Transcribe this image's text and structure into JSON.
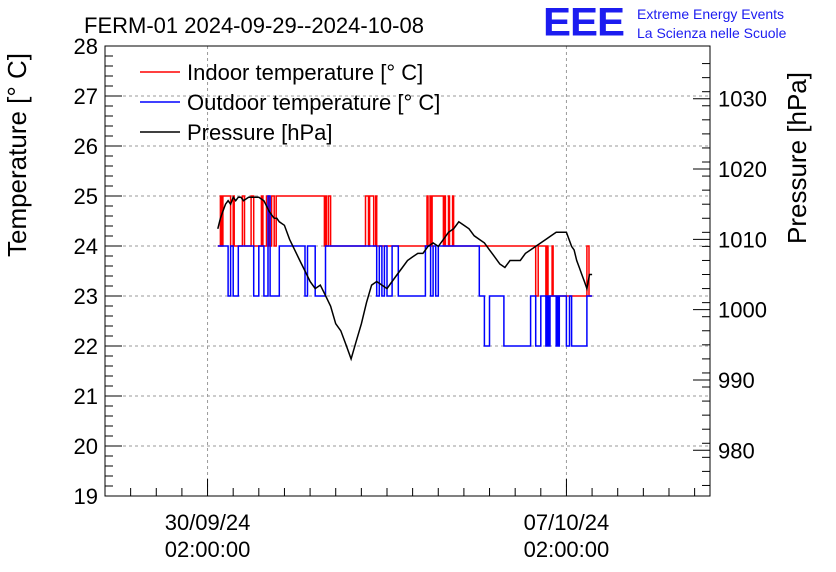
{
  "chart_data": {
    "type": "line",
    "title": "FERM-01 2024-09-29--2024-10-08",
    "ylabel": "Temperature [° C]",
    "y2label": "Pressure [hPa]",
    "ylim": [
      19,
      28
    ],
    "y2lim": [
      973.5,
      1037.5
    ],
    "ytick_labels": [
      "19",
      "20",
      "21",
      "22",
      "23",
      "24",
      "25",
      "26",
      "27",
      "28"
    ],
    "y2tick_labels": [
      "980",
      "990",
      "1000",
      "1010",
      "1020",
      "1030"
    ],
    "xtick_labels": [
      {
        "date": "30/09/24",
        "time": "02:00:00"
      },
      {
        "date": "07/10/24",
        "time": "02:00:00"
      }
    ],
    "grid": true,
    "legend_position": "top-left",
    "series": [
      {
        "name": "Indoor temperature [° C]",
        "axis": "left",
        "color": "#ff0000",
        "step": true,
        "x": [
          2.2,
          2.25,
          2.28,
          2.3,
          2.45,
          2.5,
          2.52,
          2.68,
          2.72,
          2.85,
          2.9,
          3.05,
          3.08,
          3.15,
          3.2,
          3.25,
          3.3,
          3.34,
          4.28,
          4.3,
          4.32,
          4.36,
          4.4,
          5.08,
          5.14,
          5.16,
          5.24,
          5.28,
          5.3,
          6.28,
          6.3,
          6.34,
          6.36,
          6.38,
          6.6,
          6.62,
          6.64,
          6.7,
          6.72,
          6.78,
          6.8,
          7.6,
          7.62,
          7.66,
          7.7,
          7.76,
          8.4,
          8.45,
          8.6,
          8.62,
          8.64,
          8.72,
          8.74,
          9.4,
          9.44,
          9.5
        ],
        "values": [
          24,
          25,
          24,
          25,
          24,
          25,
          24,
          25,
          24,
          25,
          24,
          25,
          24,
          25,
          24,
          25,
          24,
          25,
          24,
          25,
          24,
          25,
          24,
          25,
          24,
          25,
          24,
          25,
          24,
          25,
          24,
          25,
          24,
          25,
          24,
          25,
          24,
          25,
          24,
          25,
          24,
          24,
          24,
          24,
          24,
          24,
          23,
          24,
          23,
          24,
          23,
          24,
          23,
          24,
          23,
          23
        ]
      },
      {
        "name": "Outdoor temperature [° C]",
        "axis": "left",
        "color": "#0000ff",
        "step": true,
        "x": [
          2.2,
          2.4,
          2.45,
          2.5,
          2.6,
          2.9,
          3.0,
          3.1,
          3.18,
          3.22,
          3.4,
          3.9,
          3.95,
          4.1,
          4.3,
          5.3,
          5.35,
          5.4,
          5.45,
          5.5,
          5.6,
          5.72,
          6.25,
          6.35,
          6.4,
          6.45,
          6.5,
          7.3,
          7.4,
          7.5,
          7.78,
          8.3,
          8.4,
          8.5,
          8.6,
          8.62,
          8.65,
          8.68,
          8.8,
          8.82,
          8.84,
          8.86,
          9.0,
          9.06,
          9.1,
          9.4,
          9.5
        ],
        "values": [
          24,
          23,
          24,
          23,
          24,
          23,
          24,
          23,
          25,
          23,
          24,
          23,
          24,
          23,
          24,
          23,
          24,
          23,
          24,
          23,
          24,
          23,
          24,
          23,
          24,
          23,
          24,
          23,
          22,
          23,
          22,
          23,
          22,
          23,
          22,
          23,
          22,
          23,
          22,
          23,
          22,
          23,
          22,
          23,
          22,
          23,
          23
        ]
      },
      {
        "name": "Pressure [hPa]",
        "axis": "right",
        "color": "#000000",
        "step": false,
        "x": [
          2.2,
          2.25,
          2.3,
          2.35,
          2.4,
          2.45,
          2.5,
          2.55,
          2.6,
          2.65,
          2.7,
          2.8,
          2.9,
          3.0,
          3.1,
          3.2,
          3.25,
          3.3,
          3.35,
          3.4,
          3.5,
          3.6,
          3.7,
          3.8,
          3.9,
          4.0,
          4.1,
          4.2,
          4.3,
          4.4,
          4.5,
          4.6,
          4.7,
          4.8,
          4.9,
          5.0,
          5.1,
          5.2,
          5.3,
          5.4,
          5.5,
          5.6,
          5.7,
          5.8,
          5.9,
          6.0,
          6.1,
          6.2,
          6.3,
          6.4,
          6.5,
          6.6,
          6.7,
          6.8,
          6.9,
          7.0,
          7.1,
          7.2,
          7.3,
          7.4,
          7.5,
          7.6,
          7.7,
          7.8,
          7.9,
          8.0,
          8.1,
          8.2,
          8.3,
          8.4,
          8.5,
          8.6,
          8.7,
          8.8,
          8.9,
          9.0,
          9.1,
          9.15,
          9.2,
          9.25,
          9.3,
          9.35,
          9.4,
          9.45,
          9.5
        ],
        "values": [
          1011.5,
          1013,
          1014,
          1015,
          1015.5,
          1015,
          1016,
          1015.5,
          1016,
          1016,
          1015.5,
          1016,
          1016,
          1016,
          1015.5,
          1014,
          1013.5,
          1013,
          1013,
          1012.5,
          1012,
          1010,
          1008.5,
          1007,
          1005.5,
          1004,
          1003,
          1003.5,
          1002,
          1000.5,
          998,
          997,
          995,
          993,
          995.5,
          998,
          1001,
          1003.5,
          1004,
          1003.5,
          1003,
          1004,
          1005,
          1006,
          1007,
          1007.5,
          1008,
          1008,
          1009,
          1009.5,
          1009,
          1010,
          1011,
          1011.5,
          1012.5,
          1012,
          1011.5,
          1010.5,
          1010,
          1009.5,
          1008.5,
          1007.5,
          1006.5,
          1006,
          1007,
          1007,
          1007,
          1008,
          1008.5,
          1009,
          1009.5,
          1010,
          1010.5,
          1011,
          1011,
          1011,
          1009,
          1008.5,
          1007,
          1006,
          1005,
          1004,
          1003,
          1005,
          1005
        ]
      }
    ]
  },
  "logo": {
    "mark": "EEE",
    "line1": "Extreme Energy Events",
    "line2": "La Scienza nelle Scuole"
  }
}
